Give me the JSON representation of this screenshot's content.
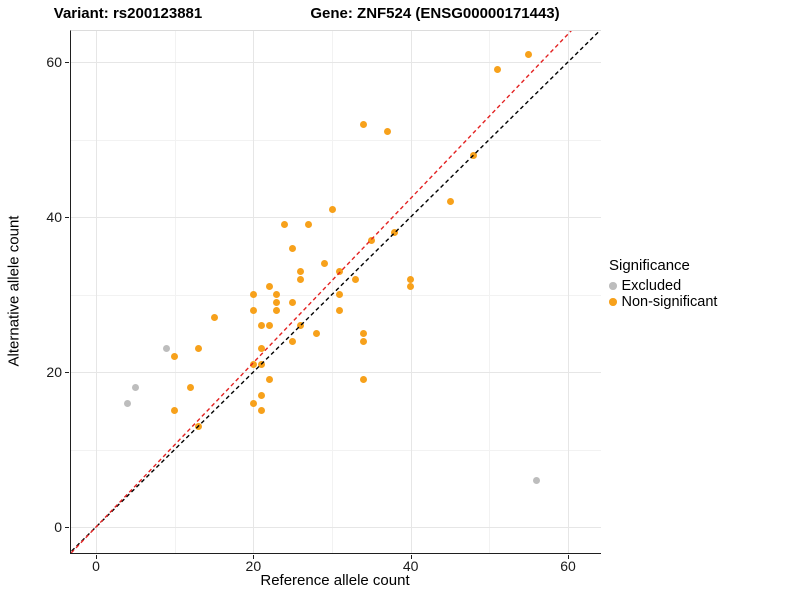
{
  "title": {
    "left": "Variant: rs200123881",
    "right": "Gene: ZNF524 (ENSG00000171443)"
  },
  "legend": {
    "title": "Significance",
    "items": [
      {
        "label": "Excluded",
        "color": "#bdbdbd"
      },
      {
        "label": "Non-significant",
        "color": "#f7a11b"
      }
    ]
  },
  "chart_data": {
    "type": "scatter",
    "title": "Variant: rs200123881 — Gene: ZNF524 (ENSG00000171443)",
    "xlabel": "Reference allele count",
    "ylabel": "Alternative allele count",
    "xlim": [
      -3.3,
      64.3
    ],
    "ylim": [
      -3.4,
      64.0
    ],
    "x_ticks": [
      0,
      20,
      40,
      60
    ],
    "y_ticks": [
      0,
      20,
      40,
      60
    ],
    "x_minor_ticks": [
      10,
      30,
      50
    ],
    "y_minor_ticks": [
      10,
      30,
      50
    ],
    "grid": true,
    "legend_position": "right",
    "series": [
      {
        "name": "Non-significant",
        "color": "#f7a11b",
        "points": [
          [
            55,
            61
          ],
          [
            51,
            59
          ],
          [
            34,
            52
          ],
          [
            37,
            51
          ],
          [
            48,
            48
          ],
          [
            45,
            42
          ],
          [
            30,
            41
          ],
          [
            24,
            39
          ],
          [
            27,
            39
          ],
          [
            38,
            38
          ],
          [
            35,
            37
          ],
          [
            25,
            36
          ],
          [
            29,
            34
          ],
          [
            31,
            33
          ],
          [
            26,
            33
          ],
          [
            33,
            32
          ],
          [
            26,
            32
          ],
          [
            40,
            32
          ],
          [
            40,
            31
          ],
          [
            22,
            31
          ],
          [
            31,
            30
          ],
          [
            20,
            30
          ],
          [
            23,
            30
          ],
          [
            23,
            29
          ],
          [
            25,
            29
          ],
          [
            20,
            28
          ],
          [
            23,
            28
          ],
          [
            31,
            28
          ],
          [
            15,
            27
          ],
          [
            21,
            26
          ],
          [
            22,
            26
          ],
          [
            26,
            26
          ],
          [
            28,
            25
          ],
          [
            34,
            25
          ],
          [
            25,
            24
          ],
          [
            34,
            24
          ],
          [
            21,
            23
          ],
          [
            13,
            23
          ],
          [
            10,
            22
          ],
          [
            20,
            21
          ],
          [
            21,
            21
          ],
          [
            22,
            19
          ],
          [
            34,
            19
          ],
          [
            12,
            18
          ],
          [
            21,
            17
          ],
          [
            20,
            16
          ],
          [
            21,
            15
          ],
          [
            10,
            15
          ],
          [
            13,
            13
          ]
        ]
      },
      {
        "name": "Excluded",
        "color": "#bdbdbd",
        "points": [
          [
            9,
            23
          ],
          [
            5,
            18
          ],
          [
            4,
            16
          ],
          [
            56,
            6
          ]
        ]
      }
    ],
    "lines": [
      {
        "name": "identity-line",
        "slope": 1.0,
        "intercept": 0,
        "color": "#000000",
        "style": "dashed"
      },
      {
        "name": "expected-ratio-line",
        "slope": 1.06,
        "intercept": 0,
        "color": "#e32222",
        "style": "dashed"
      }
    ]
  }
}
